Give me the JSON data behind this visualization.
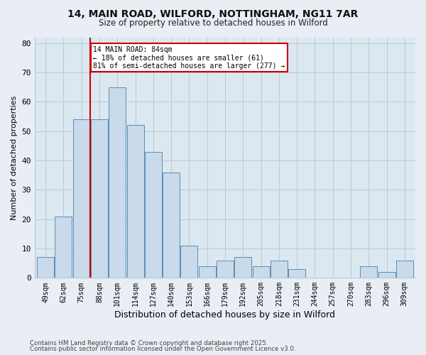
{
  "title_line1": "14, MAIN ROAD, WILFORD, NOTTINGHAM, NG11 7AR",
  "title_line2": "Size of property relative to detached houses in Wilford",
  "xlabel": "Distribution of detached houses by size in Wilford",
  "ylabel": "Number of detached properties",
  "categories": [
    "49sqm",
    "62sqm",
    "75sqm",
    "88sqm",
    "101sqm",
    "114sqm",
    "127sqm",
    "140sqm",
    "153sqm",
    "166sqm",
    "179sqm",
    "192sqm",
    "205sqm",
    "218sqm",
    "231sqm",
    "244sqm",
    "257sqm",
    "270sqm",
    "283sqm",
    "296sqm",
    "309sqm"
  ],
  "values": [
    7,
    21,
    54,
    54,
    65,
    52,
    43,
    36,
    11,
    4,
    6,
    7,
    4,
    6,
    3,
    0,
    0,
    0,
    4,
    2,
    6
  ],
  "bar_color": "#c9daea",
  "bar_edge_color": "#5b8db8",
  "red_line_x": 2.5,
  "annotation_text": "14 MAIN ROAD: 84sqm\n← 18% of detached houses are smaller (61)\n81% of semi-detached houses are larger (277) →",
  "annotation_box_color": "#ffffff",
  "annotation_box_edge": "#cc0000",
  "red_line_color": "#cc0000",
  "ylim": [
    0,
    82
  ],
  "yticks": [
    0,
    10,
    20,
    30,
    40,
    50,
    60,
    70,
    80
  ],
  "footer_line1": "Contains HM Land Registry data © Crown copyright and database right 2025.",
  "footer_line2": "Contains public sector information licensed under the Open Government Licence v3.0.",
  "bg_color": "#e8eef4",
  "plot_bg_color": "#dce8f0",
  "grid_color": "#b8c8d8"
}
